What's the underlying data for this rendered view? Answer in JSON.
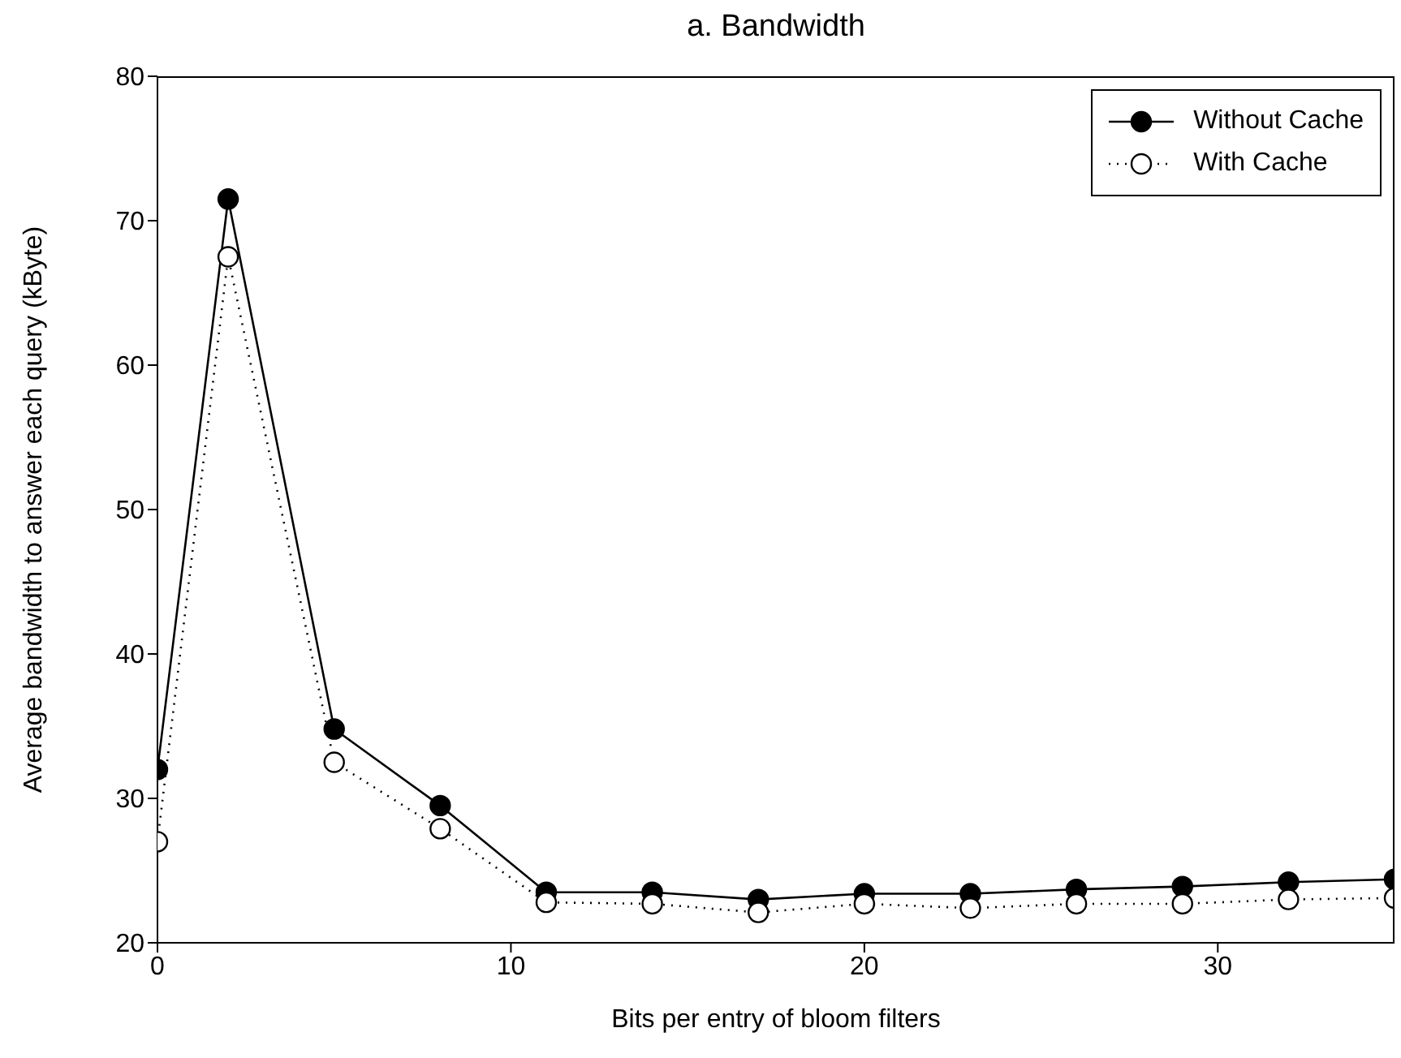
{
  "chart_data": {
    "type": "line",
    "title": "a. Bandwidth",
    "xlabel": "Bits per entry of bloom filters",
    "ylabel": "Average bandwidth to answer each query (kByte)",
    "x": [
      0,
      2,
      5,
      8,
      11,
      14,
      17,
      20,
      23,
      26,
      29,
      32,
      35
    ],
    "series": [
      {
        "name": "Without Cache",
        "color": "#000000",
        "line_style": "solid",
        "values": [
          32.0,
          71.5,
          34.8,
          29.5,
          23.5,
          23.5,
          23.0,
          23.4,
          23.4,
          23.7,
          23.9,
          24.2,
          24.4
        ]
      },
      {
        "name": "With Cache",
        "color": "#000000",
        "line_style": "dotted",
        "values": [
          27.0,
          67.5,
          32.5,
          27.9,
          22.8,
          22.7,
          22.1,
          22.7,
          22.4,
          22.7,
          22.7,
          23.0,
          23.1
        ]
      }
    ],
    "xlim": [
      0,
      35
    ],
    "xticks": [
      0,
      10,
      20,
      30
    ],
    "ylim": [
      20,
      80
    ],
    "yticks": [
      20,
      30,
      40,
      50,
      60,
      70,
      80
    ],
    "grid": false,
    "legend": "top right",
    "marker": "circle"
  }
}
